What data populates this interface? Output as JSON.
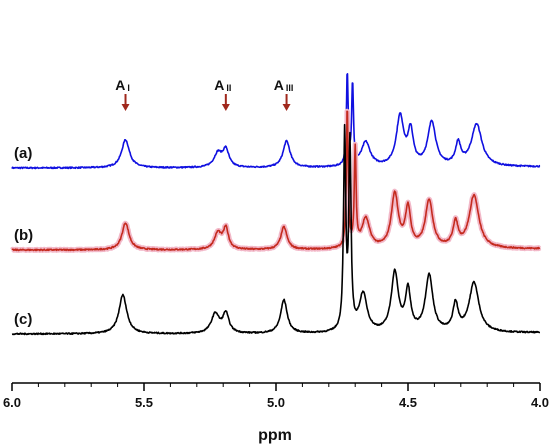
{
  "chart_data": {
    "type": "line",
    "xlabel": "ppm",
    "ylabel": "",
    "xlim": [
      6.0,
      4.0
    ],
    "x_reversed": true,
    "x_ticks": [
      {
        "value": 6.0,
        "label": "6.0"
      },
      {
        "value": 5.5,
        "label": "5.5"
      },
      {
        "value": 5.0,
        "label": "5.0"
      },
      {
        "value": 4.5,
        "label": "4.5"
      },
      {
        "value": 4.0,
        "label": "4.0"
      }
    ],
    "ylim": [
      0,
      3.2
    ],
    "grid": false,
    "series": [
      {
        "name": "(a)",
        "color": "#1010e0",
        "baseline": 2.0,
        "peaks": [
          {
            "x": 5.57,
            "h": 0.52,
            "w": 0.018
          },
          {
            "x": 5.22,
            "h": 0.26,
            "w": 0.018
          },
          {
            "x": 5.19,
            "h": 0.32,
            "w": 0.014
          },
          {
            "x": 4.96,
            "h": 0.49,
            "w": 0.016
          },
          {
            "x": 4.73,
            "h": 1.7,
            "w": 0.004
          },
          {
            "x": 4.71,
            "h": 1.5,
            "w": 0.004
          },
          {
            "x": 4.66,
            "h": 0.45,
            "w": 0.02
          },
          {
            "x": 4.53,
            "h": 0.92,
            "w": 0.017
          },
          {
            "x": 4.49,
            "h": 0.62,
            "w": 0.012
          },
          {
            "x": 4.41,
            "h": 0.82,
            "w": 0.018
          },
          {
            "x": 4.31,
            "h": 0.4,
            "w": 0.012
          },
          {
            "x": 4.24,
            "h": 0.78,
            "w": 0.024
          }
        ]
      },
      {
        "name": "(b)",
        "color": "#c42a1e",
        "baseline": 1.0,
        "peaks": [
          {
            "x": 5.57,
            "h": 0.5,
            "w": 0.016
          },
          {
            "x": 5.22,
            "h": 0.3,
            "w": 0.016
          },
          {
            "x": 5.19,
            "h": 0.38,
            "w": 0.012
          },
          {
            "x": 4.97,
            "h": 0.42,
            "w": 0.014
          },
          {
            "x": 4.73,
            "h": 2.6,
            "w": 0.004
          },
          {
            "x": 4.7,
            "h": 1.8,
            "w": 0.004
          },
          {
            "x": 4.66,
            "h": 0.55,
            "w": 0.018
          },
          {
            "x": 4.55,
            "h": 1.0,
            "w": 0.016
          },
          {
            "x": 4.5,
            "h": 0.72,
            "w": 0.012
          },
          {
            "x": 4.42,
            "h": 0.88,
            "w": 0.017
          },
          {
            "x": 4.32,
            "h": 0.45,
            "w": 0.012
          },
          {
            "x": 4.25,
            "h": 0.98,
            "w": 0.022
          }
        ]
      },
      {
        "name": "(c)",
        "color": "#000000",
        "baseline": 0.0,
        "peaks": [
          {
            "x": 5.58,
            "h": 0.72,
            "w": 0.018
          },
          {
            "x": 5.23,
            "h": 0.36,
            "w": 0.018
          },
          {
            "x": 5.19,
            "h": 0.36,
            "w": 0.014
          },
          {
            "x": 4.97,
            "h": 0.62,
            "w": 0.015
          },
          {
            "x": 4.74,
            "h": 3.6,
            "w": 0.005
          },
          {
            "x": 4.72,
            "h": 3.4,
            "w": 0.005
          },
          {
            "x": 4.67,
            "h": 0.7,
            "w": 0.018
          },
          {
            "x": 4.55,
            "h": 1.1,
            "w": 0.016
          },
          {
            "x": 4.5,
            "h": 0.75,
            "w": 0.012
          },
          {
            "x": 4.42,
            "h": 1.05,
            "w": 0.017
          },
          {
            "x": 4.32,
            "h": 0.5,
            "w": 0.012
          },
          {
            "x": 4.25,
            "h": 0.92,
            "w": 0.022
          }
        ]
      }
    ],
    "annotations": [
      {
        "text": "A",
        "sub": "I",
        "x": 5.57,
        "arrow_color": "#a0281c"
      },
      {
        "text": "A",
        "sub": "II",
        "x": 5.19,
        "arrow_color": "#a0281c"
      },
      {
        "text": "A",
        "sub": "III",
        "x": 4.96,
        "arrow_color": "#a0281c"
      }
    ]
  }
}
